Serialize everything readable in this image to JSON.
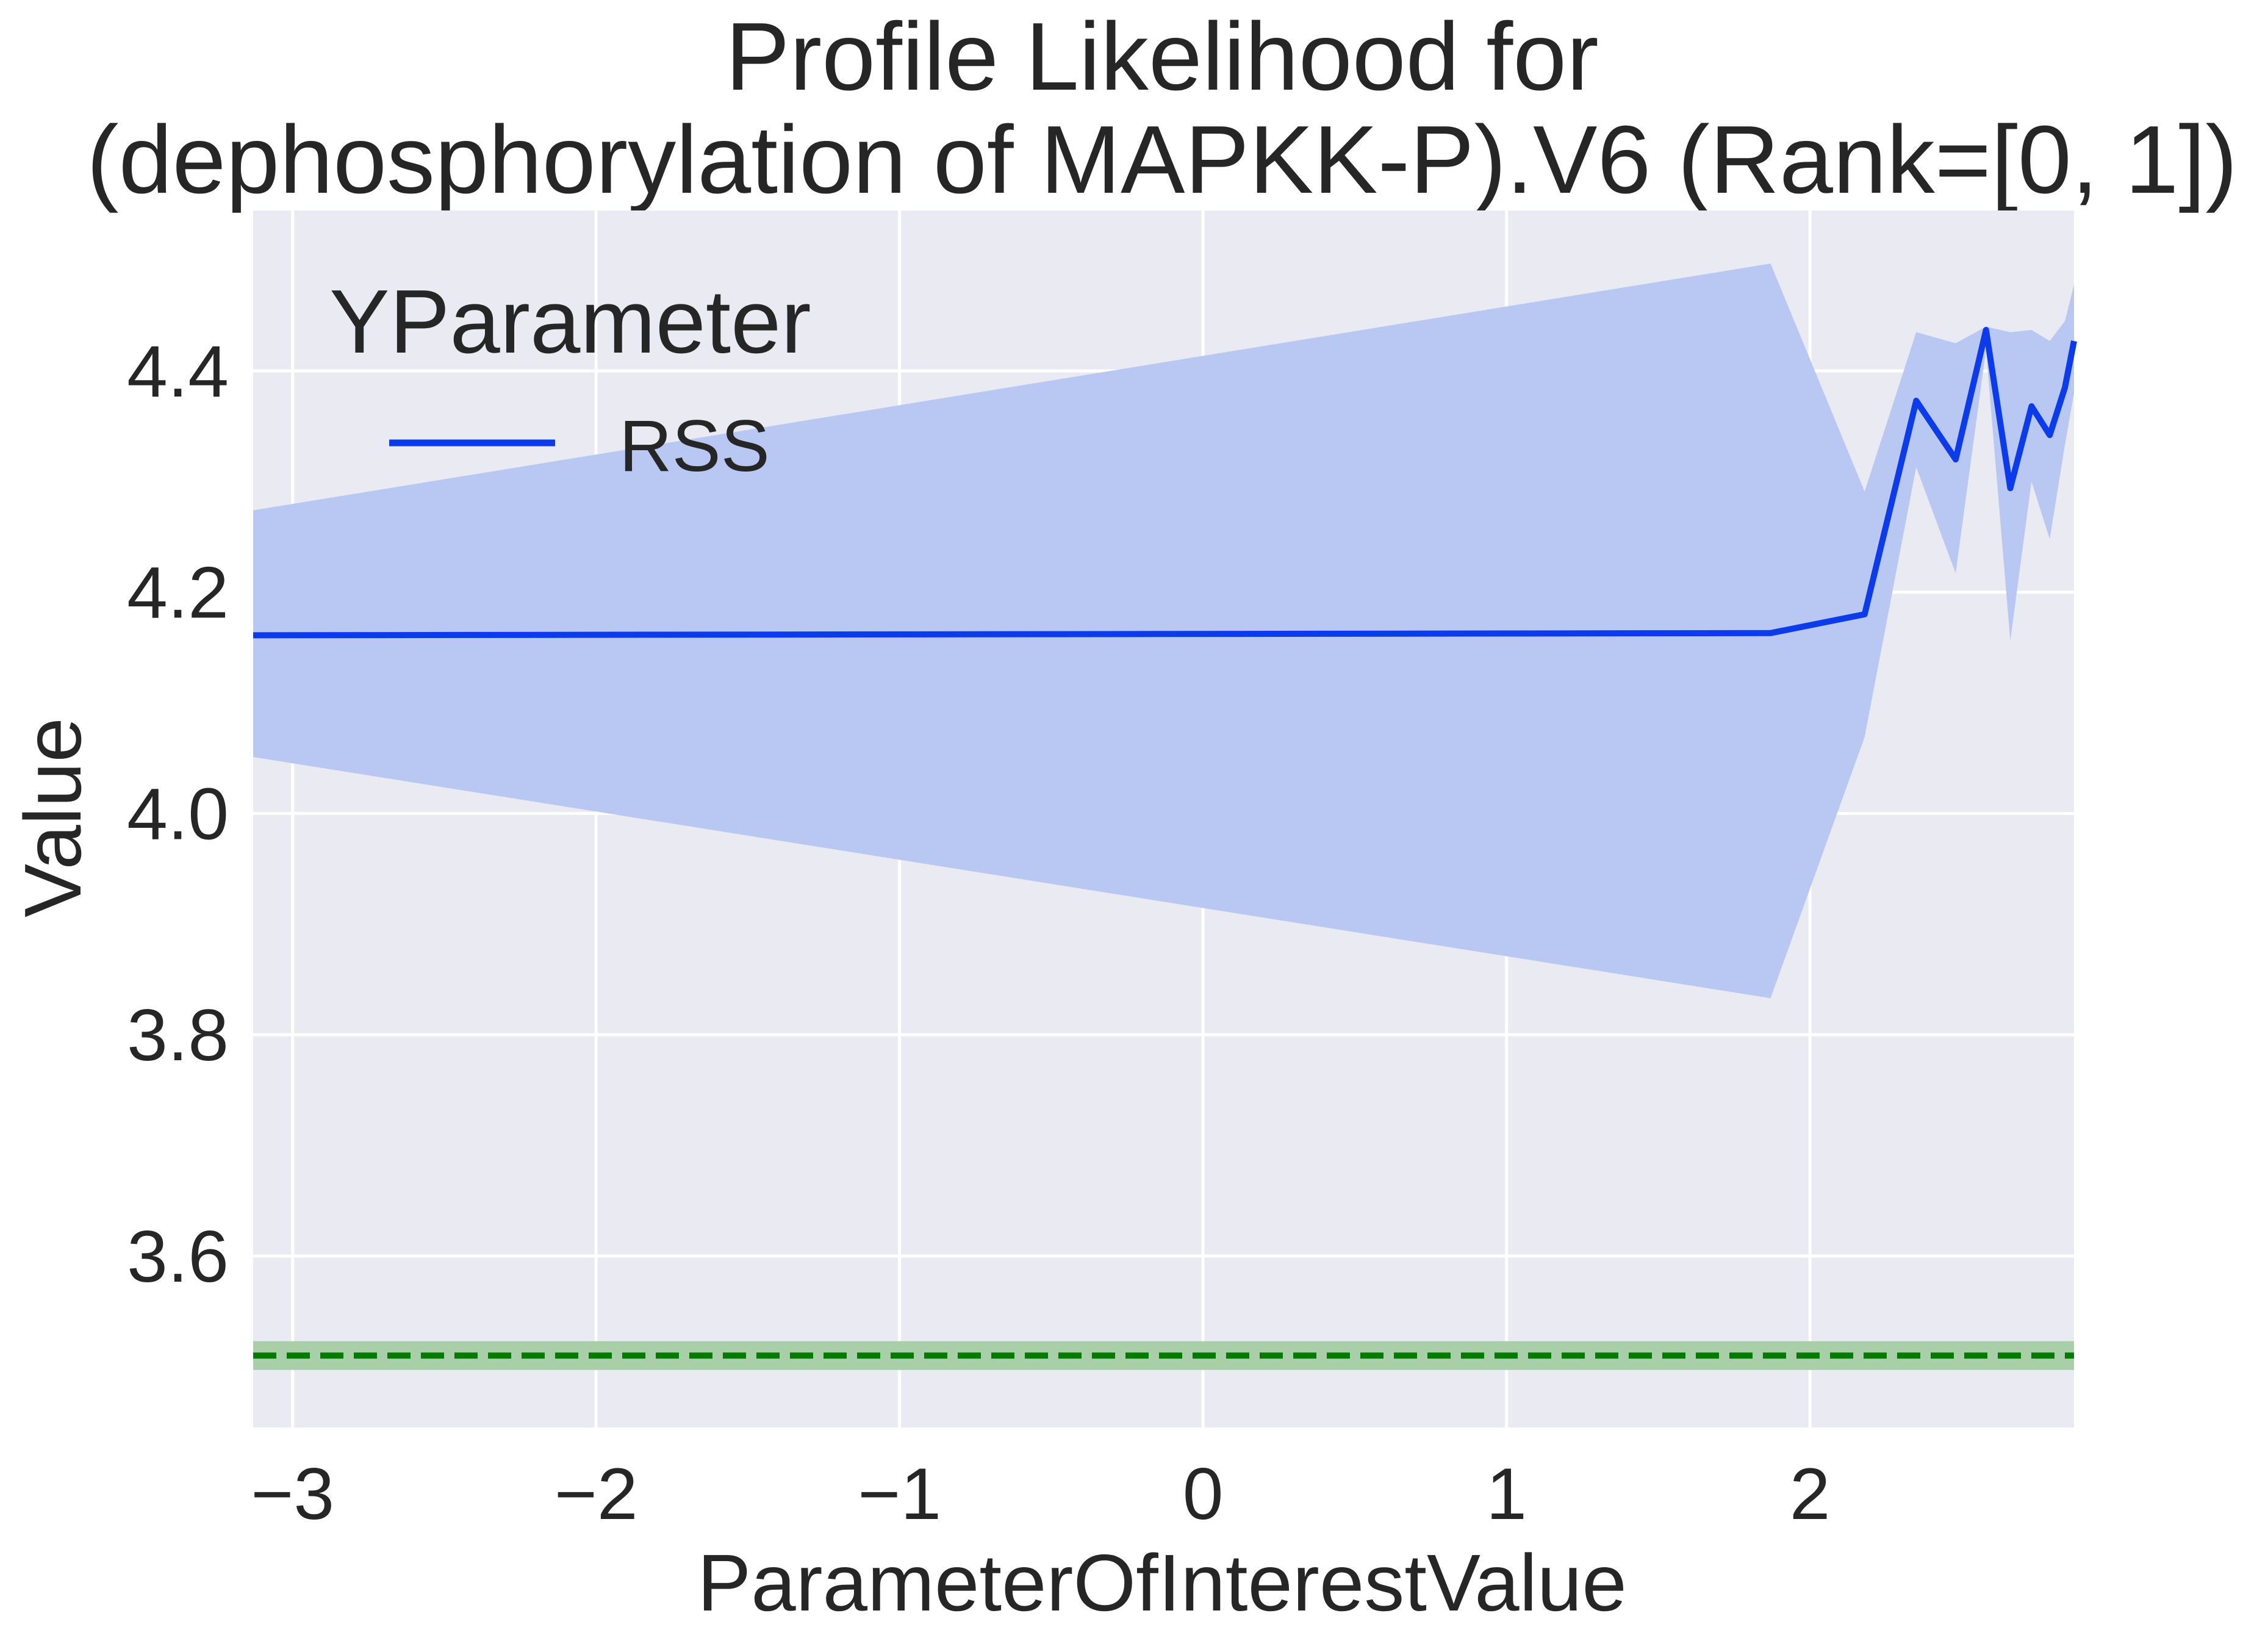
{
  "chart_data": {
    "type": "line",
    "title_lines": [
      "Profile Likelihood for",
      "(dephosphorylation of MAPKK-P).V6 (Rank=[0, 1])"
    ],
    "xlabel": "ParameterOfInterestValue",
    "ylabel": "Value",
    "xlim": [
      -3.13,
      2.87
    ],
    "ylim": [
      3.445,
      4.545
    ],
    "x_ticks": [
      -3,
      -2,
      -1,
      0,
      1,
      2
    ],
    "x_tick_labels": [
      "−3",
      "−2",
      "−1",
      "0",
      "1",
      "2"
    ],
    "y_ticks": [
      3.6,
      3.8,
      4.0,
      4.2,
      4.4
    ],
    "y_tick_labels": [
      "3.6",
      "3.8",
      "4.0",
      "4.2",
      "4.4"
    ],
    "grid": true,
    "legend": {
      "title": "YParameter",
      "placement": "top-left",
      "entries": [
        "RSS"
      ]
    },
    "series": [
      {
        "name": "RSS",
        "color": "#0b3bea",
        "band_color": "#b9c7f3",
        "x": [
          -3.13,
          1.87,
          2.18,
          2.35,
          2.48,
          2.58,
          2.66,
          2.73,
          2.79,
          2.84,
          2.87
        ],
        "y": [
          4.161,
          4.163,
          4.18,
          4.373,
          4.32,
          4.437,
          4.294,
          4.368,
          4.342,
          4.385,
          4.427
        ],
        "lower": [
          4.051,
          3.833,
          4.069,
          4.313,
          4.217,
          4.419,
          4.156,
          4.3,
          4.248,
          4.333,
          4.38
        ],
        "upper": [
          4.274,
          4.497,
          4.291,
          4.435,
          4.425,
          4.44,
          4.435,
          4.437,
          4.427,
          4.445,
          4.478
        ]
      }
    ],
    "reference_line": {
      "y": 3.51,
      "band": [
        3.497,
        3.523
      ],
      "style": "dashed",
      "color": "#007a00",
      "band_color": "#a8cfa8"
    },
    "colors": {
      "plot_background": "#eaeaf2",
      "grid": "#ffffff",
      "text": "#262626"
    }
  }
}
